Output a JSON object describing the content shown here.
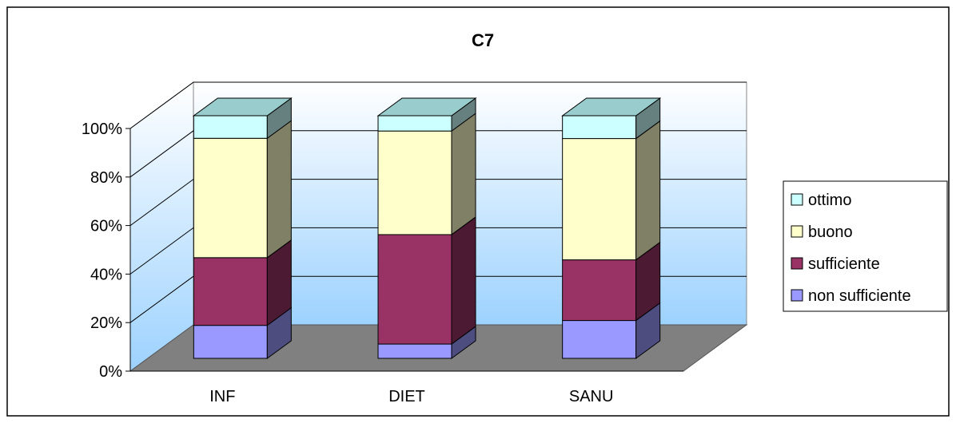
{
  "chart_data": {
    "type": "bar",
    "stacked": true,
    "three_d": true,
    "percent_stacked": true,
    "title": "C7",
    "xlabel": "",
    "ylabel": "",
    "categories": [
      "INF",
      "DIET",
      "SANU"
    ],
    "y_ticks": [
      "0%",
      "20%",
      "40%",
      "60%",
      "80%",
      "100%"
    ],
    "ylim": [
      0,
      100
    ],
    "grid": true,
    "legend_position": "right",
    "series": [
      {
        "name": "non sufficiente",
        "values": [
          13.6,
          5.9,
          15.6
        ],
        "color": "#9999ff",
        "side_color": "#4d4d80",
        "top_color": "#8585d9"
      },
      {
        "name": "sufficiente",
        "values": [
          27.9,
          45.1,
          25.0
        ],
        "color": "#993366",
        "side_color": "#4d1a33",
        "top_color": "#7a2952"
      },
      {
        "name": "buono",
        "values": [
          49.2,
          42.7,
          50.0
        ],
        "color": "#ffffcc",
        "side_color": "#808066",
        "top_color": "#d9d9ad"
      },
      {
        "name": "ottimo",
        "values": [
          9.3,
          6.3,
          9.4
        ],
        "color": "#ccffff",
        "side_color": "#668080",
        "top_color": "#99cccc"
      }
    ]
  }
}
